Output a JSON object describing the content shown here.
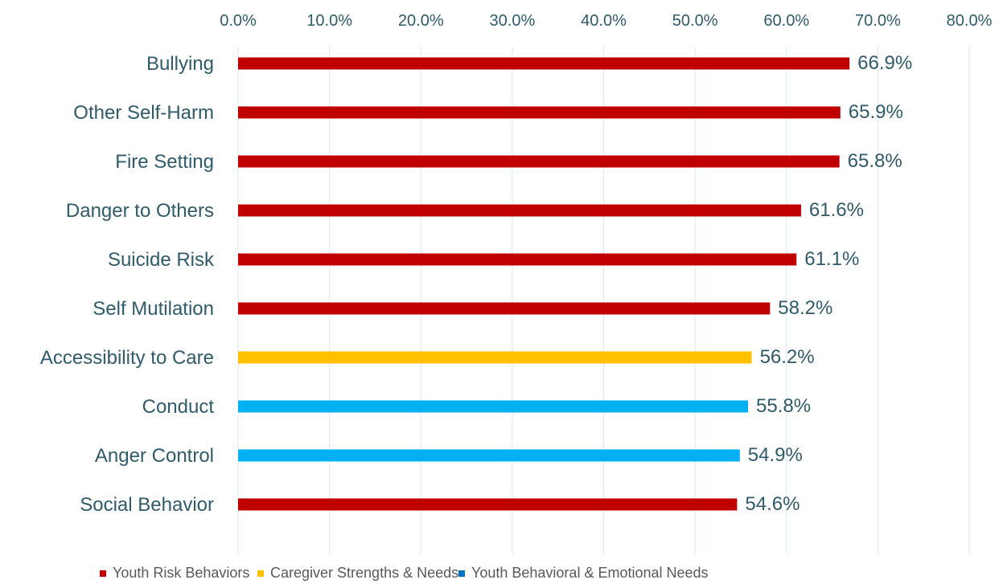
{
  "chart_data": {
    "type": "bar",
    "orientation": "horizontal",
    "title": "",
    "xlabel": "",
    "ylabel": "",
    "xlim": [
      0,
      80
    ],
    "x_ticks": [
      0,
      10,
      20,
      30,
      40,
      50,
      60,
      70,
      80
    ],
    "x_tick_labels": [
      "0.0%",
      "10.0%",
      "20.0%",
      "30.0%",
      "40.0%",
      "50.0%",
      "60.0%",
      "70.0%",
      "80.0%"
    ],
    "x_axis_position": "top",
    "grid": true,
    "legend_position": "bottom",
    "categories": [
      "Bullying",
      "Other Self-Harm",
      "Fire Setting",
      "Danger to Others",
      "Suicide Risk",
      "Self Mutilation",
      "Accessibility to Care",
      "Conduct",
      "Anger Control",
      "Social Behavior"
    ],
    "values": [
      66.9,
      65.9,
      65.8,
      61.6,
      61.1,
      58.2,
      56.2,
      55.8,
      54.9,
      54.6
    ],
    "value_labels": [
      "66.9%",
      "65.9%",
      "65.8%",
      "61.6%",
      "61.1%",
      "58.2%",
      "56.2%",
      "55.8%",
      "54.9%",
      "54.6%"
    ],
    "groups": [
      "Youth Risk Behaviors",
      "Youth Risk Behaviors",
      "Youth Risk Behaviors",
      "Youth Risk Behaviors",
      "Youth Risk Behaviors",
      "Youth Risk Behaviors",
      "Caregiver Strengths & Needs",
      "Youth Behavioral & Emotional Needs",
      "Youth Behavioral & Emotional Needs",
      "Youth Risk Behaviors"
    ],
    "legend": [
      {
        "name": "Youth Risk Behaviors",
        "color": "#c00000"
      },
      {
        "name": "Caregiver Strengths & Needs",
        "color": "#ffc000"
      },
      {
        "name": "Youth Behavioral & Emotional Needs",
        "color": "#0070c0"
      }
    ],
    "bar_colors": [
      "#c00000",
      "#c00000",
      "#c00000",
      "#c00000",
      "#c00000",
      "#c00000",
      "#ffc000",
      "#00b0f0",
      "#00b0f0",
      "#c00000"
    ]
  }
}
